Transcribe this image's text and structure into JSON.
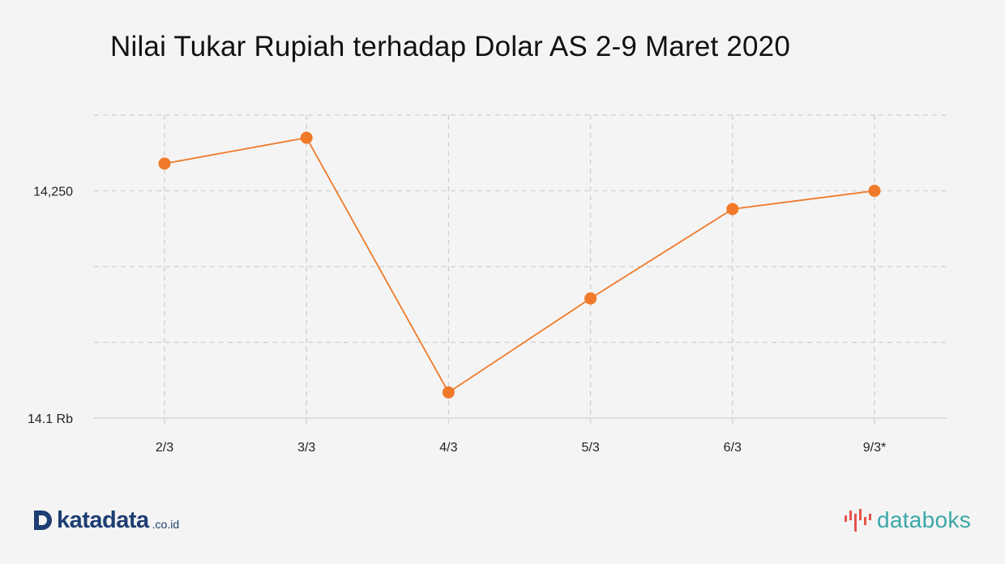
{
  "chart_data": {
    "type": "line",
    "title": "Nilai Tukar Rupiah terhadap Dolar AS 2-9 Maret 2020",
    "categories": [
      "2/3",
      "3/3",
      "4/3",
      "5/3",
      "6/3",
      "9/3*"
    ],
    "series": [
      {
        "values": [
          14268,
          14285,
          14117,
          14179,
          14238,
          14250
        ]
      }
    ],
    "ylim": [
      14100,
      14300
    ],
    "y_ticks": [
      {
        "value": 14100,
        "label": "14.1 Rb"
      },
      {
        "value": 14150,
        "label": ""
      },
      {
        "value": 14200,
        "label": ""
      },
      {
        "value": 14250,
        "label": "14,250"
      },
      {
        "value": 14300,
        "label": ""
      }
    ],
    "grid": true,
    "colors": {
      "line": "#f07a2a",
      "grid": "#cfcfcf",
      "axis": "#d8d8d8"
    }
  },
  "branding": {
    "left_logo_text": "katadata",
    "left_logo_suffix": ".co.id",
    "right_logo_text": "databoks"
  }
}
